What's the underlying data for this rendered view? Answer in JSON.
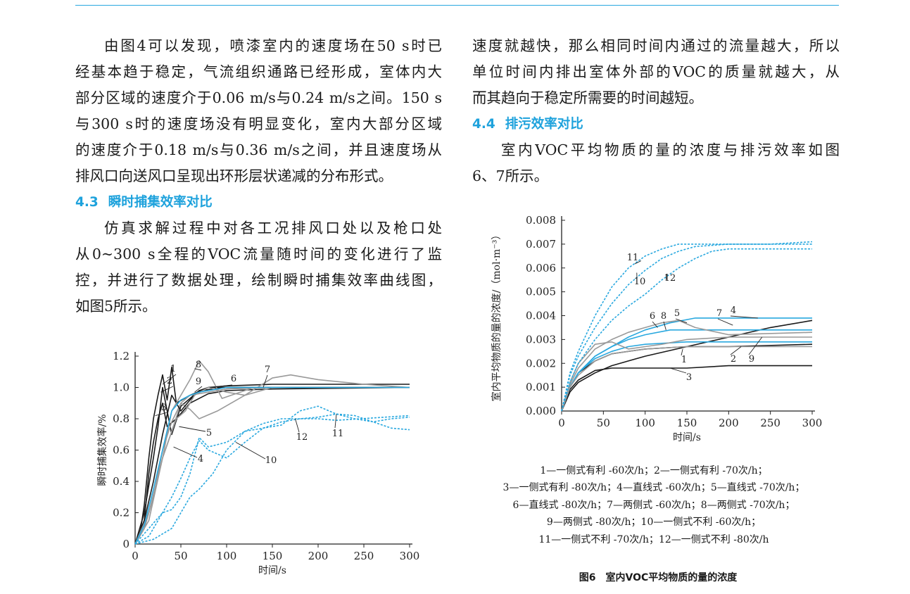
{
  "left": {
    "para1": [
      "由图4可以发现，喷漆室内的速度场在50 s时已",
      "经基本趋于稳定，气流组织通路已经形成，室体内大",
      "部分区域的速度介于0.06 m/s与0.24 m/s之间。150 s",
      "与300 s时的速度场没有明显变化，室内大部分区域",
      "的速度介于0.18 m/s与0.36 m/s之间，并且速度场从",
      "排风口向送风口呈现出环形层状递减的分布形式。"
    ],
    "heading": {
      "number": "4.3",
      "title": "瞬时捕集效率对比"
    },
    "para2": [
      "仿真求解过程中对各工况排风口处以及枪口处",
      "从0~300 s全程的VOC流量随时间的变化进行了监",
      "控，并进行了数据处理，绘制瞬时捕集效率曲线图，",
      "如图5所示。"
    ]
  },
  "right": {
    "para1": [
      "速度就越快，那么相同时间内通过的流量越大，所以",
      "单位时间内排出室体外部的VOC的质量就越大，从",
      "而其趋向于稳定所需要的时间越短。"
    ],
    "heading": {
      "number": "4.4",
      "title": "排污效率对比"
    },
    "para2": [
      "室内VOC平均物质的量的浓度与排污效率如图",
      "6、7所示。"
    ]
  },
  "chart_data": [
    {
      "type": "line",
      "title": "",
      "xlabel": "时间/s",
      "ylabel": "瞬时捕集效率/%",
      "xlim": [
        0,
        300
      ],
      "ylim": [
        0,
        1.2
      ],
      "xticks": [
        "0",
        "50",
        "100",
        "150",
        "200",
        "250",
        "300"
      ],
      "yticks": [
        "0",
        "0.2",
        "0.4",
        "0.6",
        "0.8",
        "1.0",
        "1.2"
      ],
      "curve_labels": [
        "1",
        "2",
        "3",
        "4",
        "5",
        "6",
        "7",
        "8",
        "9",
        "10",
        "11",
        "12"
      ],
      "series": [
        {
          "name": "1",
          "x": [
            0,
            5,
            10,
            15,
            20,
            25,
            30,
            35,
            40,
            45,
            60,
            80,
            100,
            150,
            200,
            300
          ],
          "values": [
            0,
            0.05,
            0.25,
            0.55,
            0.8,
            0.95,
            1.08,
            0.92,
            1.13,
            0.9,
            0.95,
            1.0,
            1.01,
            1.02,
            1.02,
            1.02
          ]
        },
        {
          "name": "2",
          "x": [
            0,
            10,
            20,
            25,
            30,
            35,
            40,
            50,
            70,
            100,
            150,
            300
          ],
          "values": [
            0,
            0.2,
            0.55,
            0.75,
            1.0,
            0.85,
            0.7,
            0.88,
            0.98,
            1.0,
            1.0,
            1.0
          ]
        },
        {
          "name": "3",
          "x": [
            0,
            10,
            15,
            20,
            25,
            30,
            35,
            45,
            60,
            80,
            100,
            150,
            300
          ],
          "values": [
            0,
            0.15,
            0.45,
            0.65,
            0.8,
            0.9,
            0.75,
            0.8,
            0.9,
            0.96,
            0.98,
            0.99,
            1.0
          ]
        },
        {
          "name": "4",
          "x": [
            0,
            10,
            20,
            30,
            40,
            50,
            60,
            80,
            100,
            150,
            300
          ],
          "values": [
            0,
            0.1,
            0.3,
            0.55,
            0.72,
            0.9,
            0.95,
            0.97,
            0.99,
            1.0,
            1.0
          ]
        },
        {
          "name": "5",
          "x": [
            0,
            10,
            20,
            30,
            40,
            50,
            60,
            70,
            90,
            120,
            150,
            300
          ],
          "values": [
            0,
            0.1,
            0.3,
            0.6,
            0.78,
            0.9,
            0.86,
            0.8,
            0.85,
            0.95,
            1.0,
            1.0
          ]
        },
        {
          "name": "6",
          "x": [
            0,
            10,
            20,
            30,
            40,
            50,
            60,
            70,
            80,
            100,
            150,
            300
          ],
          "values": [
            0,
            0.15,
            0.4,
            0.7,
            0.95,
            0.85,
            0.92,
            0.98,
            1.0,
            1.0,
            1.0,
            1.0
          ]
        },
        {
          "name": "7",
          "x": [
            0,
            15,
            30,
            45,
            55,
            65,
            80,
            100,
            120,
            150,
            170,
            200,
            250,
            300
          ],
          "values": [
            0,
            0.15,
            0.55,
            0.8,
            0.85,
            0.95,
            1.0,
            0.97,
            0.95,
            1.06,
            1.08,
            1.05,
            1.02,
            1.0
          ]
        },
        {
          "name": "8",
          "x": [
            0,
            15,
            30,
            40,
            50,
            60,
            70,
            80,
            95,
            110,
            130,
            150,
            300
          ],
          "values": [
            0,
            0.2,
            0.55,
            0.85,
            0.95,
            1.05,
            1.17,
            1.1,
            0.93,
            0.96,
            1.0,
            1.0,
            1.0
          ]
        },
        {
          "name": "9",
          "x": [
            0,
            10,
            20,
            30,
            40,
            50,
            60,
            70,
            80,
            100,
            150,
            300
          ],
          "values": [
            0,
            0.12,
            0.35,
            0.6,
            0.85,
            0.92,
            0.95,
            0.97,
            0.98,
            1.0,
            1.0,
            1.0
          ]
        },
        {
          "name": "10",
          "x": [
            0,
            15,
            30,
            40,
            50,
            60,
            70,
            80,
            100,
            120,
            140,
            160,
            180,
            200,
            220,
            300
          ],
          "values": [
            0,
            0.05,
            0.2,
            0.3,
            0.42,
            0.55,
            0.66,
            0.6,
            0.55,
            0.65,
            0.74,
            0.78,
            0.8,
            0.8,
            0.79,
            0.82
          ]
        },
        {
          "name": "11",
          "x": [
            0,
            15,
            30,
            40,
            50,
            60,
            70,
            80,
            100,
            120,
            140,
            160,
            180,
            200,
            220,
            240,
            260,
            280,
            300
          ],
          "values": [
            0,
            0.1,
            0.2,
            0.22,
            0.3,
            0.45,
            0.68,
            0.62,
            0.65,
            0.72,
            0.74,
            0.76,
            0.85,
            0.88,
            0.83,
            0.82,
            0.78,
            0.74,
            0.73
          ]
        },
        {
          "name": "12",
          "x": [
            0,
            20,
            40,
            50,
            60,
            70,
            85,
            100,
            120,
            140,
            160,
            180,
            200,
            220,
            240,
            260,
            280,
            300
          ],
          "values": [
            0,
            0.03,
            0.1,
            0.2,
            0.3,
            0.35,
            0.45,
            0.6,
            0.72,
            0.77,
            0.8,
            0.8,
            0.81,
            0.83,
            0.8,
            0.78,
            0.8,
            0.81
          ]
        }
      ]
    },
    {
      "type": "line",
      "title": "图6　室内VOC平均物质的量的浓度",
      "xlabel": "时间/s",
      "ylabel": "室内平均物质的量的浓度/（mol·m⁻³）",
      "xlim": [
        0,
        300
      ],
      "ylim": [
        0,
        0.008
      ],
      "xticks": [
        "0",
        "50",
        "100",
        "150",
        "200",
        "250",
        "300"
      ],
      "yticks": [
        "0.000",
        "0.001",
        "0.002",
        "0.003",
        "0.004",
        "0.005",
        "0.006",
        "0.007",
        "0.008"
      ],
      "curve_labels": [
        "1",
        "2",
        "3",
        "4",
        "5",
        "6",
        "7",
        "8",
        "9",
        "10",
        "11",
        "12"
      ],
      "legend": [
        "1—一侧式有利 -60次/h；2—一侧式有利 -70次/h；",
        "3—一侧式有利 -80次/h；4—直线式 -60次/h；5—直线式 -70次/h；",
        "6—直线式 -80次/h；7—两侧式 -60次/h；8—两侧式 -70次/h；",
        "9—两侧式 -80次/h；10—一侧式不利 -60次/h；",
        "11—一侧式不利 -70次/h；12—一侧式不利 -80次/h"
      ],
      "series": [
        {
          "name": "1",
          "x": [
            0,
            10,
            20,
            40,
            60,
            100,
            150,
            200,
            250,
            300
          ],
          "values": [
            0,
            0.0008,
            0.0012,
            0.0016,
            0.0019,
            0.0023,
            0.0027,
            0.0031,
            0.0035,
            0.0038
          ]
        },
        {
          "name": "2",
          "x": [
            0,
            10,
            20,
            40,
            60,
            100,
            150,
            200,
            300
          ],
          "values": [
            0,
            0.001,
            0.0016,
            0.0021,
            0.0024,
            0.0026,
            0.0027,
            0.0027,
            0.0028
          ]
        },
        {
          "name": "3",
          "x": [
            0,
            10,
            20,
            40,
            60,
            100,
            150,
            200,
            300
          ],
          "values": [
            0,
            0.0009,
            0.0013,
            0.0017,
            0.0018,
            0.0018,
            0.0018,
            0.0019,
            0.0019
          ]
        },
        {
          "name": "4",
          "x": [
            0,
            10,
            20,
            40,
            60,
            80,
            100,
            130,
            160,
            200,
            300
          ],
          "values": [
            0,
            0.001,
            0.0016,
            0.0023,
            0.0027,
            0.0031,
            0.0034,
            0.0037,
            0.0039,
            0.0039,
            0.0039
          ]
        },
        {
          "name": "5",
          "x": [
            0,
            10,
            20,
            40,
            60,
            80,
            100,
            130,
            160,
            200,
            300
          ],
          "values": [
            0,
            0.001,
            0.0016,
            0.0023,
            0.0027,
            0.003,
            0.0032,
            0.0034,
            0.0034,
            0.0034,
            0.0034
          ]
        },
        {
          "name": "6",
          "x": [
            0,
            10,
            20,
            40,
            60,
            80,
            100,
            150,
            200,
            300
          ],
          "values": [
            0,
            0.001,
            0.0016,
            0.0022,
            0.0025,
            0.0027,
            0.0028,
            0.0029,
            0.0029,
            0.0029
          ]
        },
        {
          "name": "7",
          "x": [
            0,
            10,
            20,
            40,
            60,
            80,
            100,
            120,
            140,
            160,
            200,
            300
          ],
          "values": [
            0,
            0.0011,
            0.0018,
            0.0026,
            0.003,
            0.0033,
            0.0035,
            0.0037,
            0.0038,
            0.0035,
            0.0032,
            0.0033
          ]
        },
        {
          "name": "8",
          "x": [
            0,
            10,
            20,
            40,
            60,
            80,
            100,
            120,
            150,
            200,
            300
          ],
          "values": [
            0,
            0.0012,
            0.002,
            0.0028,
            0.0029,
            0.0026,
            0.0027,
            0.0028,
            0.003,
            0.0031,
            0.0031
          ]
        },
        {
          "name": "9",
          "x": [
            0,
            10,
            20,
            40,
            60,
            100,
            150,
            200,
            300
          ],
          "values": [
            0,
            0.001,
            0.0015,
            0.0021,
            0.0024,
            0.0026,
            0.0027,
            0.0027,
            0.0027
          ]
        },
        {
          "name": "10",
          "x": [
            0,
            10,
            20,
            40,
            60,
            80,
            100,
            120,
            140,
            160,
            200,
            250,
            300
          ],
          "values": [
            0,
            0.0015,
            0.0023,
            0.0035,
            0.0045,
            0.0053,
            0.0059,
            0.0064,
            0.0067,
            0.0069,
            0.007,
            0.007,
            0.007
          ]
        },
        {
          "name": "11",
          "x": [
            0,
            10,
            20,
            40,
            60,
            80,
            100,
            120,
            140,
            160,
            200,
            250,
            300
          ],
          "values": [
            0,
            0.0016,
            0.0025,
            0.004,
            0.0052,
            0.006,
            0.0065,
            0.0068,
            0.007,
            0.007,
            0.007,
            0.007,
            0.0071
          ]
        },
        {
          "name": "12",
          "x": [
            0,
            10,
            20,
            40,
            60,
            80,
            100,
            120,
            140,
            160,
            180,
            200,
            250,
            300
          ],
          "values": [
            0,
            0.0012,
            0.002,
            0.003,
            0.0038,
            0.0044,
            0.0049,
            0.0055,
            0.006,
            0.0064,
            0.0067,
            0.0068,
            0.0068,
            0.0068
          ]
        }
      ]
    }
  ],
  "style": {
    "accent": "#1ea2dc",
    "gray_line": "#9a9a9a",
    "black_line": "#1a1a1a",
    "blue_line": "#29a8df"
  }
}
